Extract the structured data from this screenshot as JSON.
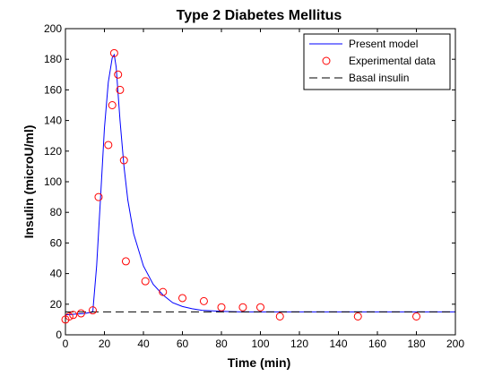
{
  "chart_data": {
    "type": "line",
    "title": "Type 2 Diabetes Mellitus",
    "xlabel": "Time (min)",
    "ylabel": "Insulin (microU/ml)",
    "xlim": [
      0,
      200
    ],
    "ylim": [
      0,
      200
    ],
    "xticks": [
      0,
      20,
      40,
      60,
      80,
      100,
      120,
      140,
      160,
      180,
      200
    ],
    "yticks": [
      0,
      20,
      40,
      60,
      80,
      100,
      120,
      140,
      160,
      180,
      200
    ],
    "grid": false,
    "legend_position": "top-right",
    "series": [
      {
        "name": "Present model",
        "kind": "line",
        "color": "#0000ff",
        "x": [
          0,
          5,
          10,
          14,
          16,
          18,
          20,
          22,
          24,
          25,
          26,
          28,
          30,
          32,
          35,
          40,
          45,
          50,
          55,
          60,
          65,
          70,
          80,
          90,
          100,
          120,
          150,
          180,
          200
        ],
        "y": [
          13,
          13.5,
          14,
          15,
          45,
          90,
          135,
          165,
          181,
          183,
          175,
          140,
          110,
          88,
          66,
          45,
          33,
          26,
          21,
          18.5,
          17,
          16,
          15.3,
          15,
          15,
          15,
          15,
          15,
          15
        ]
      },
      {
        "name": "Experimental data",
        "kind": "scatter",
        "color": "#ff0000",
        "x": [
          0,
          2,
          4,
          8,
          14,
          17,
          22,
          24,
          25,
          27,
          28,
          30,
          31,
          41,
          50,
          60,
          71,
          80,
          91,
          100,
          110,
          150,
          180
        ],
        "y": [
          10,
          12,
          13,
          14,
          16,
          90,
          124,
          150,
          184,
          170,
          160,
          114,
          48,
          35,
          28,
          24,
          22,
          18,
          18,
          18,
          12,
          12,
          12
        ]
      },
      {
        "name": "Basal insulin",
        "kind": "dashed",
        "color": "#000000",
        "x": [
          0,
          200
        ],
        "y": [
          15,
          15
        ]
      }
    ]
  }
}
